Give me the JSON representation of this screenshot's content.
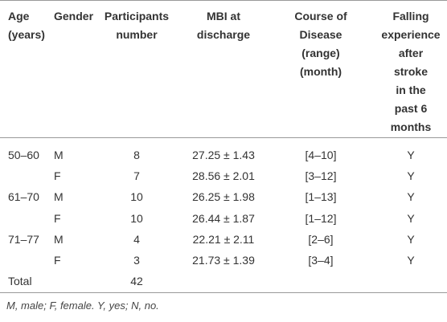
{
  "table": {
    "header": [
      [
        "Age",
        "(years)"
      ],
      [
        "Gender"
      ],
      [
        "Participants",
        "number"
      ],
      [
        "MBI at",
        "discharge"
      ],
      [
        "Course of",
        "Disease",
        "(range)",
        "(month)"
      ],
      [
        "Falling",
        "experience",
        "after",
        "stroke",
        "in the",
        "past 6",
        "months"
      ]
    ],
    "rows": [
      {
        "age": "50–60",
        "gender": "M",
        "participants": 8,
        "mbi": "27.25 ± 1.43",
        "course": "[4–10]",
        "falling": "Y"
      },
      {
        "gender": "F",
        "participants": 7,
        "mbi": "28.56 ± 2.01",
        "course": "[3–12]",
        "falling": "Y"
      },
      {
        "age": "61–70",
        "gender": "M",
        "participants": 10,
        "mbi": "26.25 ± 1.98",
        "course": "[1–13]",
        "falling": "Y"
      },
      {
        "gender": "F",
        "participants": 10,
        "mbi": "26.44 ± 1.87",
        "course": "[1–12]",
        "falling": "Y"
      },
      {
        "age": "71–77",
        "gender": "M",
        "participants": 4,
        "mbi": "22.21 ± 2.11",
        "course": "[2–6]",
        "falling": "Y"
      },
      {
        "gender": "F",
        "participants": 3,
        "mbi": "21.73 ± 1.39",
        "course": "[3–4]",
        "falling": "Y"
      },
      {
        "age": "Total",
        "participants": 42
      }
    ],
    "footnote": "M, male; F, female. Y, yes; N, no."
  }
}
